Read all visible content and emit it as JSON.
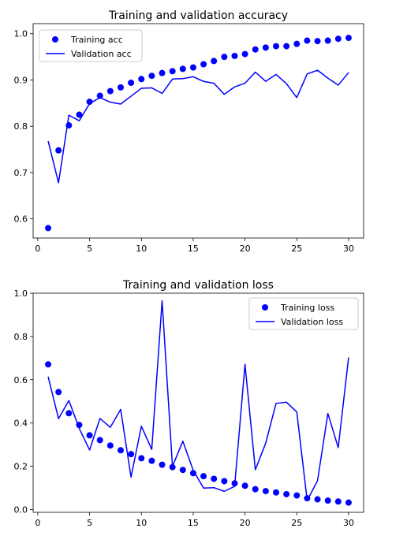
{
  "chart_data": [
    {
      "type": "line",
      "title": "Training and validation accuracy",
      "xlabel": "",
      "ylabel": "",
      "xlim": [
        -0.45,
        31.45
      ],
      "ylim": [
        0.5586,
        1.0217
      ],
      "xticks": [
        0,
        5,
        10,
        15,
        20,
        25,
        30
      ],
      "xtick_labels": [
        "0",
        "5",
        "10",
        "15",
        "20",
        "25",
        "30"
      ],
      "yticks": [
        0.6,
        0.7,
        0.8,
        0.9,
        1.0
      ],
      "ytick_labels": [
        "0.6",
        "0.7",
        "0.8",
        "0.9",
        "1.0"
      ],
      "grid": false,
      "legend_position": "upper left",
      "x": [
        1,
        2,
        3,
        4,
        5,
        6,
        7,
        8,
        9,
        10,
        11,
        12,
        13,
        14,
        15,
        16,
        17,
        18,
        19,
        20,
        21,
        22,
        23,
        24,
        25,
        26,
        27,
        28,
        29,
        30
      ],
      "series": [
        {
          "name": "Training acc",
          "style": "markers",
          "color": "#0000ff",
          "values": [
            0.58,
            0.748,
            0.802,
            0.825,
            0.853,
            0.866,
            0.876,
            0.884,
            0.894,
            0.902,
            0.909,
            0.915,
            0.919,
            0.924,
            0.927,
            0.934,
            0.941,
            0.95,
            0.952,
            0.956,
            0.966,
            0.97,
            0.973,
            0.973,
            0.978,
            0.985,
            0.984,
            0.985,
            0.989,
            0.991
          ]
        },
        {
          "name": "Validation acc",
          "style": "line",
          "color": "#0000ff",
          "values": [
            0.768,
            0.678,
            0.824,
            0.812,
            0.849,
            0.862,
            0.852,
            0.848,
            0.865,
            0.882,
            0.883,
            0.871,
            0.902,
            0.903,
            0.907,
            0.897,
            0.893,
            0.869,
            0.885,
            0.893,
            0.917,
            0.897,
            0.912,
            0.892,
            0.862,
            0.913,
            0.921,
            0.904,
            0.889,
            0.916
          ]
        }
      ]
    },
    {
      "type": "line",
      "title": "Training and validation loss",
      "xlabel": "",
      "ylabel": "",
      "xlim": [
        -0.45,
        31.45
      ],
      "ylim": [
        -0.013,
        1.0
      ],
      "xticks": [
        0,
        5,
        10,
        15,
        20,
        25,
        30
      ],
      "xtick_labels": [
        "0",
        "5",
        "10",
        "15",
        "20",
        "25",
        "30"
      ],
      "yticks": [
        0.0,
        0.2,
        0.4,
        0.6,
        0.8,
        1.0
      ],
      "ytick_labels": [
        "0.0",
        "0.2",
        "0.4",
        "0.6",
        "0.8",
        "1.0"
      ],
      "grid": false,
      "legend_position": "upper right",
      "x": [
        1,
        2,
        3,
        4,
        5,
        6,
        7,
        8,
        9,
        10,
        11,
        12,
        13,
        14,
        15,
        16,
        17,
        18,
        19,
        20,
        21,
        22,
        23,
        24,
        25,
        26,
        27,
        28,
        29,
        30
      ],
      "series": [
        {
          "name": "Training loss",
          "style": "markers",
          "color": "#0000ff",
          "values": [
            0.671,
            0.543,
            0.445,
            0.391,
            0.343,
            0.321,
            0.296,
            0.274,
            0.256,
            0.237,
            0.225,
            0.207,
            0.196,
            0.183,
            0.168,
            0.154,
            0.142,
            0.131,
            0.121,
            0.11,
            0.094,
            0.085,
            0.079,
            0.071,
            0.065,
            0.052,
            0.047,
            0.041,
            0.037,
            0.032
          ]
        },
        {
          "name": "Validation loss",
          "style": "line",
          "color": "#0000ff",
          "values": [
            0.614,
            0.42,
            0.504,
            0.375,
            0.275,
            0.421,
            0.38,
            0.463,
            0.15,
            0.385,
            0.278,
            0.965,
            0.199,
            0.316,
            0.181,
            0.099,
            0.101,
            0.084,
            0.107,
            0.671,
            0.184,
            0.307,
            0.491,
            0.496,
            0.451,
            0.042,
            0.133,
            0.444,
            0.286,
            0.703
          ]
        }
      ]
    }
  ]
}
